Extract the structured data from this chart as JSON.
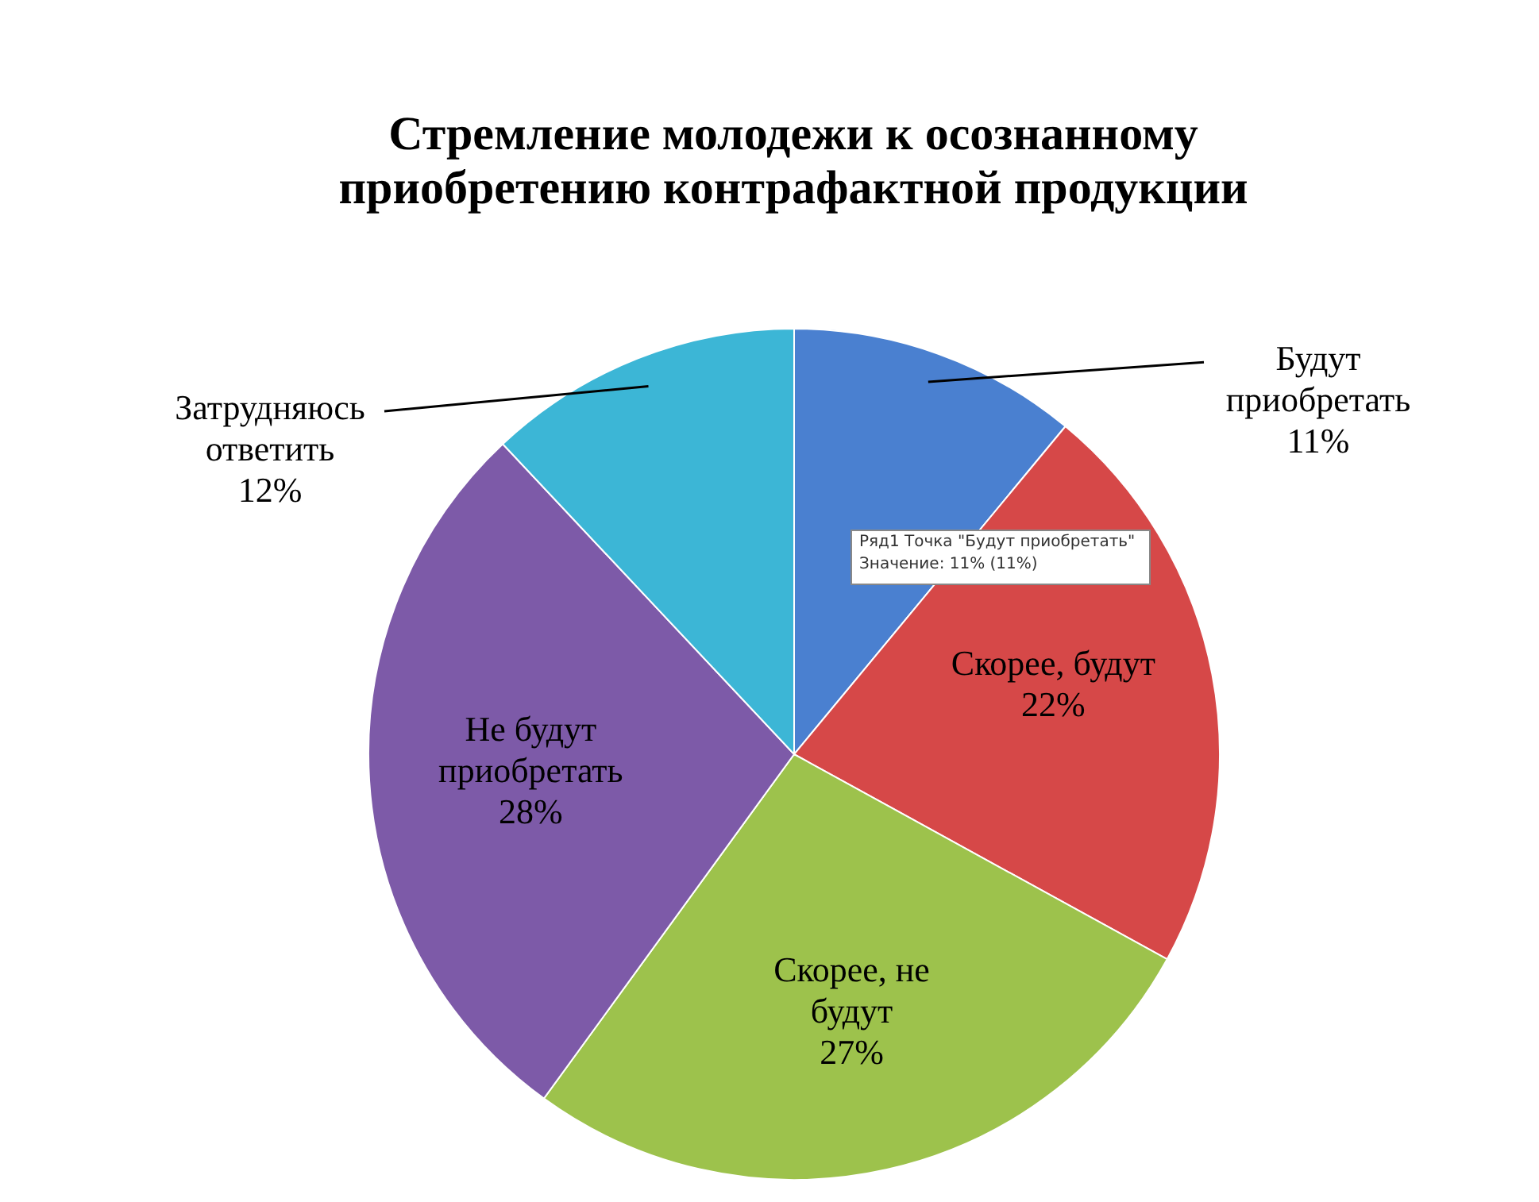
{
  "chart_data": {
    "type": "pie",
    "title": "Стремление молодежи к осознанному приобретению контрафактной продукции",
    "categories": [
      "Будут приобретать",
      "Скорее, будут",
      "Скорее, не будут",
      "Не будут приобретать",
      "Затрудняюсь ответить"
    ],
    "values": [
      11,
      22,
      27,
      28,
      12
    ],
    "colors": [
      "#4a80d0",
      "#d64848",
      "#9dc24c",
      "#7d5aa8",
      "#3cb6d6"
    ],
    "value_labels": [
      "11%",
      "22%",
      "27%",
      "28%",
      "12%"
    ],
    "annotations": [
      "Ряд1 Точка \"Будут приобретать\"",
      "Значение: 11% (11%)"
    ]
  }
}
